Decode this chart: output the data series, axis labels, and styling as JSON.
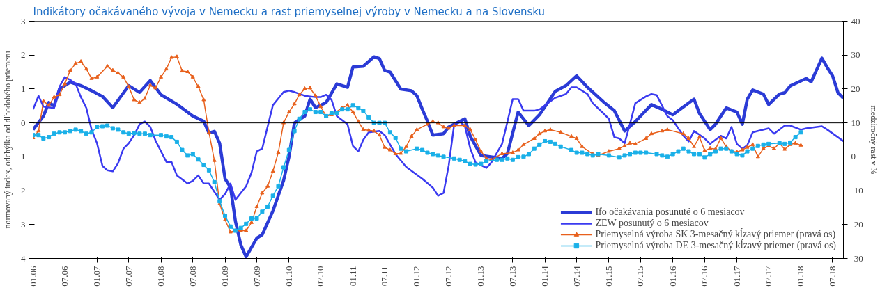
{
  "chart_data": {
    "type": "line",
    "title": "Indikátory očakávaného vývoja v Nemecku a rast priemyselnej výroby v Nemecku a na Slovensku",
    "ylabel": "normovaný index, odchýlka od dlhodobého priemeru",
    "y2label": "medziročný rast v %",
    "xlim": [
      "2006-01",
      "2018-09"
    ],
    "xticks": [
      {
        "value": "2006-01",
        "label": "01.06"
      },
      {
        "value": "2006-07",
        "label": "07.06"
      },
      {
        "value": "2007-01",
        "label": "01.07"
      },
      {
        "value": "2007-07",
        "label": "07.07"
      },
      {
        "value": "2008-01",
        "label": "01.08"
      },
      {
        "value": "2008-07",
        "label": "07.08"
      },
      {
        "value": "2009-01",
        "label": "01.09"
      },
      {
        "value": "2009-07",
        "label": "07.09"
      },
      {
        "value": "2010-01",
        "label": "01.10"
      },
      {
        "value": "2010-07",
        "label": "07.10"
      },
      {
        "value": "2011-01",
        "label": "01.11"
      },
      {
        "value": "2011-07",
        "label": "07.11"
      },
      {
        "value": "2012-01",
        "label": "01.12"
      },
      {
        "value": "2012-07",
        "label": "07.12"
      },
      {
        "value": "2013-01",
        "label": "01.13"
      },
      {
        "value": "2013-07",
        "label": "07.13"
      },
      {
        "value": "2014-01",
        "label": "01.14"
      },
      {
        "value": "2014-07",
        "label": "07.14"
      },
      {
        "value": "2015-01",
        "label": "01.15"
      },
      {
        "value": "2015-07",
        "label": "07.15"
      },
      {
        "value": "2016-01",
        "label": "01.16"
      },
      {
        "value": "2016-07",
        "label": "07.16"
      },
      {
        "value": "2017-01",
        "label": "01.17"
      },
      {
        "value": "2017-07",
        "label": "07.17"
      },
      {
        "value": "2018-01",
        "label": "01.18"
      },
      {
        "value": "2018-07",
        "label": "07.18"
      }
    ],
    "ylim": [
      -4,
      3
    ],
    "yticks": [
      -4,
      -3,
      -2,
      -1,
      0,
      1,
      2,
      3
    ],
    "y2lim": [
      -30,
      40
    ],
    "y2ticks": [
      -30,
      -20,
      -10,
      0,
      10,
      20,
      30,
      40
    ],
    "ref_lines": [
      {
        "axis": "y",
        "value": 0,
        "color": "#000000"
      }
    ],
    "legend": "bottom right",
    "series": [
      {
        "name": "Ifo očakávania posunuté o 6 mesiacov",
        "color": "#2b3bd6",
        "marker": "none",
        "x": [
          "2006-01",
          "2006-03",
          "2006-04",
          "2006-05",
          "2006-06",
          "2006-08",
          "2006-10",
          "2006-12",
          "2007-02",
          "2007-04",
          "2007-07",
          "2007-09",
          "2007-11",
          "2008-01",
          "2008-04",
          "2008-07",
          "2008-09",
          "2008-10",
          "2008-11",
          "2008-12",
          "2009-01",
          "2009-02",
          "2009-03",
          "2009-04",
          "2009-05",
          "2009-07",
          "2009-08",
          "2009-10",
          "2009-12",
          "2010-01",
          "2010-02",
          "2010-04",
          "2010-05",
          "2010-06",
          "2010-08",
          "2010-10",
          "2010-12",
          "2011-01",
          "2011-03",
          "2011-05",
          "2011-06",
          "2011-07",
          "2011-08",
          "2011-10",
          "2011-12",
          "2012-01",
          "2012-02",
          "2012-03",
          "2012-04",
          "2012-06",
          "2012-07",
          "2012-10",
          "2012-11",
          "2013-01",
          "2013-05",
          "2013-06",
          "2013-08",
          "2013-10",
          "2013-12",
          "2014-03",
          "2014-05",
          "2014-07",
          "2014-09",
          "2014-12",
          "2015-02",
          "2015-04",
          "2015-06",
          "2015-09",
          "2015-11",
          "2016-01",
          "2016-02",
          "2016-05",
          "2016-06",
          "2016-08",
          "2016-09",
          "2016-11",
          "2017-01",
          "2017-02",
          "2017-03",
          "2017-04",
          "2017-06",
          "2017-07",
          "2017-09",
          "2017-10",
          "2017-11",
          "2018-02",
          "2018-03",
          "2018-05",
          "2018-06",
          "2018-07",
          "2018-08",
          "2018-09"
        ],
        "values": [
          -0.2,
          0.2,
          0.6,
          0.5,
          1.0,
          1.2,
          1.1,
          0.95,
          0.78,
          0.45,
          1.1,
          0.9,
          1.25,
          0.83,
          0.55,
          0.2,
          0.05,
          -0.3,
          -0.25,
          -0.6,
          -1.65,
          -1.9,
          -2.9,
          -3.6,
          -3.95,
          -3.4,
          -3.3,
          -2.6,
          -1.7,
          -1.0,
          0.0,
          0.2,
          0.7,
          0.45,
          0.6,
          1.15,
          1.05,
          1.65,
          1.67,
          1.95,
          1.9,
          1.55,
          1.5,
          1.0,
          0.95,
          0.8,
          0.4,
          0.05,
          -0.36,
          -0.32,
          -0.12,
          0.12,
          -0.4,
          -0.96,
          -1.05,
          -0.9,
          0.32,
          -0.08,
          0.24,
          0.93,
          1.1,
          1.39,
          1.05,
          0.62,
          0.36,
          -0.24,
          0.04,
          0.54,
          0.4,
          0.24,
          0.36,
          0.7,
          0.28,
          -0.2,
          -0.04,
          0.44,
          0.32,
          -0.04,
          0.7,
          0.97,
          0.85,
          0.54,
          0.85,
          0.89,
          1.09,
          1.31,
          1.21,
          1.91,
          1.63,
          1.39,
          0.89,
          0.73
        ]
      },
      {
        "name": "ZEW posunutý o 6 mesiacov",
        "color": "#3a3af0",
        "marker": "none",
        "x": [
          "2006-01",
          "2006-02",
          "2006-03",
          "2006-05",
          "2006-06",
          "2006-07",
          "2006-08",
          "2006-09",
          "2006-10",
          "2006-11",
          "2006-12",
          "2007-01",
          "2007-02",
          "2007-03",
          "2007-04",
          "2007-05",
          "2007-06",
          "2007-07",
          "2007-08",
          "2007-09",
          "2007-10",
          "2007-11",
          "2007-12",
          "2008-01",
          "2008-02",
          "2008-03",
          "2008-04",
          "2008-06",
          "2008-07",
          "2008-08",
          "2008-09",
          "2008-10",
          "2008-12",
          "2009-01",
          "2009-02",
          "2009-03",
          "2009-05",
          "2009-06",
          "2009-07",
          "2009-08",
          "2009-10",
          "2009-12",
          "2010-01",
          "2010-02",
          "2010-04",
          "2010-06",
          "2010-07",
          "2010-08",
          "2010-09",
          "2010-10",
          "2010-12",
          "2011-01",
          "2011-02",
          "2011-03",
          "2011-04",
          "2011-06",
          "2011-07",
          "2011-09",
          "2011-11",
          "2012-02",
          "2012-04",
          "2012-05",
          "2012-06",
          "2012-07",
          "2012-08",
          "2012-09",
          "2012-10",
          "2012-11",
          "2012-12",
          "2013-02",
          "2013-03",
          "2013-05",
          "2013-06",
          "2013-07",
          "2013-08",
          "2013-09",
          "2013-11",
          "2013-12",
          "2014-03",
          "2014-05",
          "2014-06",
          "2014-07",
          "2014-09",
          "2014-10",
          "2014-12",
          "2015-01",
          "2015-02",
          "2015-03",
          "2015-04",
          "2015-05",
          "2015-06",
          "2015-08",
          "2015-09",
          "2015-10",
          "2015-12",
          "2016-01",
          "2016-03",
          "2016-04",
          "2016-05",
          "2016-07",
          "2016-08",
          "2016-10",
          "2016-11",
          "2016-12",
          "2017-01",
          "2017-02",
          "2017-03",
          "2017-04",
          "2017-05",
          "2017-07",
          "2017-08",
          "2017-10",
          "2017-11",
          "2018-01",
          "2018-02",
          "2018-05",
          "2018-06",
          "2018-09"
        ],
        "values": [
          0.4,
          0.8,
          0.48,
          0.44,
          1.07,
          1.35,
          1.27,
          1.15,
          0.76,
          0.44,
          -0.2,
          -0.6,
          -1.27,
          -1.4,
          -1.43,
          -1.19,
          -0.76,
          -0.6,
          -0.36,
          -0.04,
          0.04,
          -0.12,
          -0.52,
          -0.84,
          -1.15,
          -1.15,
          -1.55,
          -1.79,
          -1.71,
          -1.55,
          -1.79,
          -1.79,
          -2.27,
          -2.1,
          -1.79,
          -2.27,
          -1.87,
          -1.47,
          -0.84,
          -0.76,
          0.52,
          0.91,
          0.95,
          0.91,
          0.8,
          0.76,
          0.76,
          0.83,
          0.68,
          0.2,
          -0.04,
          -0.68,
          -0.84,
          -0.5,
          -0.28,
          -0.24,
          -0.36,
          -0.92,
          -1.3,
          -1.65,
          -1.91,
          -2.15,
          -2.07,
          -1.25,
          -0.04,
          0.04,
          -0.1,
          -0.76,
          -1.17,
          -1.33,
          -1.17,
          -0.62,
          0.04,
          0.7,
          0.7,
          0.36,
          0.36,
          0.4,
          0.74,
          0.85,
          1.05,
          1.05,
          0.85,
          0.58,
          0.28,
          0.12,
          -0.42,
          -0.46,
          -0.6,
          -0.04,
          0.58,
          0.78,
          0.85,
          0.82,
          0.2,
          0.08,
          -0.38,
          -0.55,
          -0.24,
          -0.46,
          -0.62,
          -0.38,
          -0.46,
          -0.12,
          -0.62,
          -0.76,
          -0.66,
          -0.28,
          -0.24,
          -0.16,
          -0.32,
          -0.08,
          -0.08,
          -0.2,
          -0.16,
          -0.1,
          -0.2,
          -0.54
        ]
      },
      {
        "name": "Priemyselná výroba SK 3-mesačný kĺzavý priemer (pravá os)",
        "color": "#e8601c",
        "marker": "triangle",
        "axis": "y2",
        "x": [
          "2006-01",
          "2006-02",
          "2006-03",
          "2006-04",
          "2006-05",
          "2006-06",
          "2006-07",
          "2006-08",
          "2006-09",
          "2006-10",
          "2006-11",
          "2006-12",
          "2007-01",
          "2007-03",
          "2007-04",
          "2007-05",
          "2007-06",
          "2007-07",
          "2007-08",
          "2007-09",
          "2007-10",
          "2007-11",
          "2007-12",
          "2008-01",
          "2008-02",
          "2008-03",
          "2008-04",
          "2008-05",
          "2008-06",
          "2008-07",
          "2008-08",
          "2008-09",
          "2008-10",
          "2008-11",
          "2008-12",
          "2009-01",
          "2009-02",
          "2009-03",
          "2009-04",
          "2009-05",
          "2009-06",
          "2009-07",
          "2009-08",
          "2009-09",
          "2009-10",
          "2009-11",
          "2009-12",
          "2010-01",
          "2010-02",
          "2010-03",
          "2010-04",
          "2010-05",
          "2010-06",
          "2010-07",
          "2010-08",
          "2010-09",
          "2010-11",
          "2010-12",
          "2011-01",
          "2011-02",
          "2011-03",
          "2011-04",
          "2011-05",
          "2011-06",
          "2011-07",
          "2011-08",
          "2011-09",
          "2011-10",
          "2011-11",
          "2011-12",
          "2012-01",
          "2012-03",
          "2012-04",
          "2012-05",
          "2012-06",
          "2012-07",
          "2012-08",
          "2012-10",
          "2012-11",
          "2012-12",
          "2013-01",
          "2013-02",
          "2013-03",
          "2013-05",
          "2013-07",
          "2013-08",
          "2013-09",
          "2013-11",
          "2013-12",
          "2014-01",
          "2014-02",
          "2014-04",
          "2014-06",
          "2014-07",
          "2014-08",
          "2014-10",
          "2014-11",
          "2015-01",
          "2015-03",
          "2015-04",
          "2015-05",
          "2015-06",
          "2015-08",
          "2015-09",
          "2015-11",
          "2015-12",
          "2016-03",
          "2016-04",
          "2016-05",
          "2016-06",
          "2016-07",
          "2016-08",
          "2016-09",
          "2016-10",
          "2016-11",
          "2016-12",
          "2017-01",
          "2017-02",
          "2017-03",
          "2017-04",
          "2017-05",
          "2017-06",
          "2017-07",
          "2017-08",
          "2017-09",
          "2017-10",
          "2017-11",
          "2017-12",
          "2018-01"
        ],
        "values": [
          5.6,
          7.6,
          16.4,
          15.2,
          17.6,
          18.3,
          21.5,
          25.5,
          27.5,
          28.1,
          25.9,
          23.1,
          23.5,
          26.7,
          25.5,
          24.7,
          23.5,
          20.7,
          16.8,
          16.0,
          17.2,
          21.1,
          20.3,
          23.5,
          25.9,
          29.3,
          29.5,
          25.3,
          25.1,
          23.5,
          20.7,
          16.8,
          7.2,
          -1.1,
          -13.9,
          -18.6,
          -22.2,
          -21.8,
          -21.8,
          -21.8,
          -19.4,
          -14.7,
          -10.7,
          -8.7,
          -4.3,
          1.3,
          10,
          13.2,
          15.6,
          18.3,
          20.1,
          20.3,
          18.0,
          14.8,
          12.0,
          12.4,
          14.4,
          15.2,
          13.2,
          10.4,
          8.0,
          7.8,
          7.6,
          6.4,
          2.8,
          2.0,
          0.9,
          1.0,
          3.0,
          6.0,
          8.0,
          9.6,
          10.4,
          10.0,
          8.8,
          8.4,
          9.2,
          9.2,
          8.0,
          5.0,
          1.6,
          -0.5,
          -0.9,
          0.9,
          1.2,
          2.0,
          3.6,
          5.4,
          6.8,
          7.6,
          8.0,
          7.2,
          6.0,
          5.4,
          3.0,
          0.8,
          0.4,
          1.6,
          2.4,
          3.2,
          4.0,
          3.8,
          5.4,
          6.8,
          7.6,
          8.0,
          6.8,
          5.4,
          3.0,
          5.8,
          1.8,
          2.5,
          2.3,
          5.5,
          3.0,
          1.6,
          1.4,
          2.0,
          2.8,
          3.6,
          0.0,
          2.4,
          3.2,
          2.4,
          4.0,
          2.2,
          3.6,
          4.0,
          3.4
        ]
      },
      {
        "name": "Priemyselná výroba DE 3-mesačný kĺzavý priemer (pravá os)",
        "color": "#1ab0e8",
        "marker": "square",
        "axis": "y2",
        "x": [
          "2006-01",
          "2006-02",
          "2006-03",
          "2006-04",
          "2006-05",
          "2006-06",
          "2006-07",
          "2006-08",
          "2006-09",
          "2006-10",
          "2006-11",
          "2006-12",
          "2007-01",
          "2007-02",
          "2007-03",
          "2007-04",
          "2007-05",
          "2007-06",
          "2007-07",
          "2007-08",
          "2007-09",
          "2007-10",
          "2007-11",
          "2008-01",
          "2008-02",
          "2008-03",
          "2008-04",
          "2008-05",
          "2008-06",
          "2008-07",
          "2008-08",
          "2008-09",
          "2008-10",
          "2008-11",
          "2008-12",
          "2009-01",
          "2009-02",
          "2009-03",
          "2009-04",
          "2009-05",
          "2009-06",
          "2009-07",
          "2009-08",
          "2009-09",
          "2009-10",
          "2009-11",
          "2009-12",
          "2010-01",
          "2010-02",
          "2010-03",
          "2010-04",
          "2010-05",
          "2010-06",
          "2010-07",
          "2010-08",
          "2010-09",
          "2010-10",
          "2010-11",
          "2010-12",
          "2011-01",
          "2011-02",
          "2011-03",
          "2011-04",
          "2011-05",
          "2011-06",
          "2011-07",
          "2011-08",
          "2011-09",
          "2011-10",
          "2011-11",
          "2012-01",
          "2012-02",
          "2012-03",
          "2012-04",
          "2012-05",
          "2012-06",
          "2012-08",
          "2012-09",
          "2012-10",
          "2012-11",
          "2012-12",
          "2013-01",
          "2013-02",
          "2013-04",
          "2013-05",
          "2013-06",
          "2013-07",
          "2013-08",
          "2013-09",
          "2013-10",
          "2013-11",
          "2013-12",
          "2014-01",
          "2014-02",
          "2014-03",
          "2014-04",
          "2014-06",
          "2014-07",
          "2014-08",
          "2014-09",
          "2014-10",
          "2014-11",
          "2015-01",
          "2015-03",
          "2015-04",
          "2015-05",
          "2015-06",
          "2015-07",
          "2015-08",
          "2015-10",
          "2015-11",
          "2015-12",
          "2016-01",
          "2016-02",
          "2016-03",
          "2016-04",
          "2016-05",
          "2016-06",
          "2016-07",
          "2016-08",
          "2016-09",
          "2016-10",
          "2016-11",
          "2016-12",
          "2017-01",
          "2017-02",
          "2017-03",
          "2017-04",
          "2017-05",
          "2017-06",
          "2017-07",
          "2017-09",
          "2017-10",
          "2017-11",
          "2017-12",
          "2018-01"
        ],
        "values": [
          6.4,
          6.4,
          5.4,
          5.8,
          6.8,
          7.2,
          7.2,
          7.6,
          8.0,
          7.6,
          6.8,
          7.2,
          8.8,
          9.0,
          9.2,
          8.4,
          8.0,
          7.2,
          6.8,
          7.0,
          6.8,
          6.8,
          6.4,
          6.4,
          6.0,
          5.8,
          4.4,
          2.0,
          0.4,
          0.8,
          -0.8,
          -2.4,
          -4.0,
          -7.5,
          -13.1,
          -17.4,
          -20.6,
          -21.8,
          -21.0,
          -19.8,
          -18.2,
          -18.2,
          -16.2,
          -14.7,
          -11.5,
          -8.7,
          -3.1,
          2.0,
          7.6,
          11.2,
          13.2,
          14.0,
          13.2,
          13.2,
          12.0,
          12.8,
          12.8,
          14.0,
          14.0,
          15.2,
          14.4,
          13.6,
          11.6,
          10.0,
          10.0,
          10.0,
          7.2,
          5.6,
          2.4,
          1.6,
          2.4,
          2.0,
          1.2,
          0.8,
          0.4,
          0.0,
          -0.5,
          -0.9,
          -1.3,
          -2.1,
          -2.3,
          -2.1,
          -1.3,
          -0.9,
          -0.9,
          -0.5,
          -0.9,
          -0.1,
          0.0,
          0.8,
          2.4,
          3.6,
          4.6,
          4.4,
          3.8,
          3.0,
          2.0,
          1.2,
          1.2,
          0.8,
          0.4,
          0.8,
          0.4,
          -0.2,
          0.4,
          0.8,
          1.2,
          1.2,
          1.2,
          0.8,
          0.4,
          0.0,
          0.8,
          1.6,
          2.4,
          1.6,
          0.8,
          0.8,
          -0.2,
          0.8,
          1.6,
          2.4,
          2.4,
          1.6,
          0.8,
          0.4,
          1.6,
          2.4,
          3.2,
          3.6,
          3.8,
          4.0,
          3.8,
          4.2,
          5.8,
          7.2
        ]
      }
    ]
  }
}
